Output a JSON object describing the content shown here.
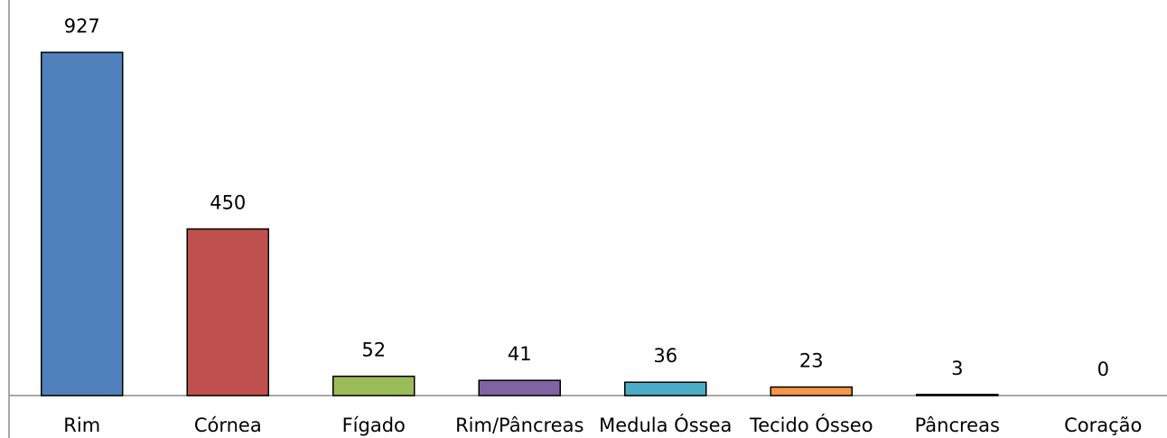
{
  "chart_data": {
    "type": "bar",
    "title": "",
    "xlabel": "",
    "ylabel": "",
    "categories": [
      "Rim",
      "Córnea",
      "Fígado",
      "Rim/Pâncreas",
      "Medula Óssea",
      "Tecido Ósseo",
      "Pâncreas",
      "Coração"
    ],
    "values": [
      927,
      450,
      52,
      41,
      36,
      23,
      3,
      0
    ],
    "data_labels": [
      "927",
      "450",
      "52",
      "41",
      "36",
      "23",
      "3",
      "0"
    ],
    "colors": [
      "#4f81bd",
      "#c0504d",
      "#9bbb59",
      "#8064a2",
      "#4bacc6",
      "#f79646",
      "#4f81bd",
      "#c0504d"
    ],
    "ylim": [
      0,
      927
    ],
    "grid": false,
    "legend": "none"
  }
}
